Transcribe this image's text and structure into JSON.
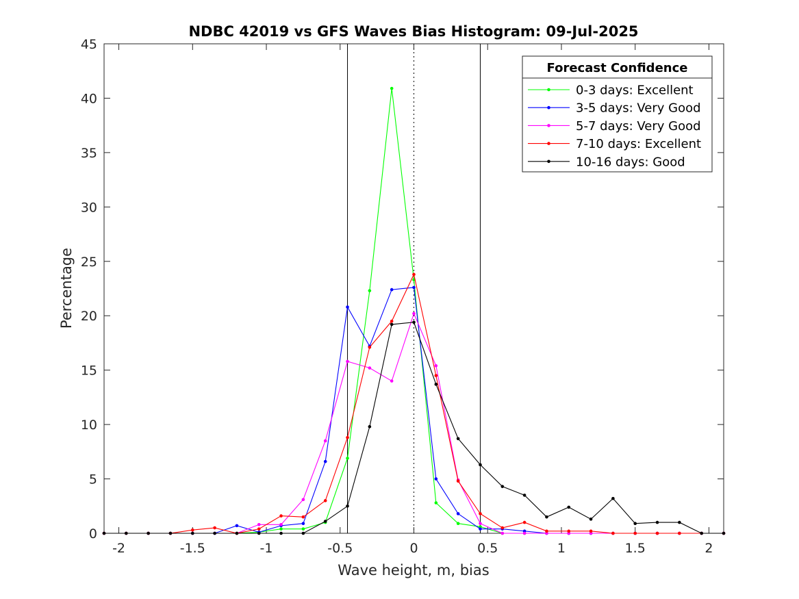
{
  "chart_data": {
    "type": "line",
    "title": "NDBC 42019 vs GFS Waves Bias Histogram: 09-Jul-2025",
    "xlabel": "Wave height, m, bias",
    "ylabel": "Percentage",
    "xlim": [
      -2.1,
      2.1
    ],
    "ylim": [
      0,
      45
    ],
    "xticks": [
      -2,
      -1.5,
      -1,
      -0.5,
      0,
      0.5,
      1,
      1.5,
      2
    ],
    "xtick_labels": [
      "-2",
      "-1.5",
      "-1",
      "-0.5",
      "0",
      "0.5",
      "1",
      "1.5",
      "2"
    ],
    "yticks": [
      0,
      5,
      10,
      15,
      20,
      25,
      30,
      35,
      40,
      45
    ],
    "ytick_labels": [
      "0",
      "5",
      "10",
      "15",
      "20",
      "25",
      "30",
      "35",
      "40",
      "45"
    ],
    "grid": false,
    "vertical_lines": [
      {
        "x": -0.45,
        "style": "solid"
      },
      {
        "x": 0,
        "style": "dotted"
      },
      {
        "x": 0.45,
        "style": "solid"
      }
    ],
    "legend": {
      "title": "Forecast Confidence",
      "placement": "top-right"
    },
    "x": [
      -2.1,
      -1.95,
      -1.8,
      -1.65,
      -1.5,
      -1.35,
      -1.2,
      -1.05,
      -0.9,
      -0.75,
      -0.6,
      -0.45,
      -0.3,
      -0.15,
      0,
      0.15,
      0.3,
      0.45,
      0.6,
      0.75,
      0.9,
      1.05,
      1.2,
      1.35,
      1.5,
      1.65,
      1.8,
      1.95,
      2.1
    ],
    "series": [
      {
        "name": "0-3 days: Excellent",
        "color": "#00ff00",
        "values": [
          0,
          0,
          0,
          0,
          0,
          0,
          0,
          0.1,
          0.4,
          0.4,
          1.0,
          6.9,
          22.3,
          40.9,
          23.3,
          2.8,
          0.9,
          0.6,
          0,
          0,
          0,
          0,
          0,
          0,
          0,
          0,
          0,
          0,
          0
        ]
      },
      {
        "name": "3-5 days: Very Good",
        "color": "#0000ff",
        "values": [
          0,
          0,
          0,
          0,
          0,
          0,
          0.7,
          0.1,
          0.7,
          0.9,
          6.6,
          20.8,
          17.2,
          22.4,
          22.6,
          5.0,
          1.8,
          0.4,
          0.4,
          0.2,
          0,
          0,
          0,
          0,
          0,
          0,
          0,
          0,
          0
        ]
      },
      {
        "name": "5-7 days: Very Good",
        "color": "#ff00ff",
        "values": [
          0,
          0,
          0,
          0,
          0,
          0,
          0,
          0.8,
          0.8,
          3.1,
          8.5,
          15.8,
          15.2,
          14.0,
          20.2,
          15.4,
          4.9,
          0.9,
          0,
          0,
          0,
          0,
          0,
          0,
          0,
          0,
          0,
          0,
          0
        ]
      },
      {
        "name": "7-10 days: Excellent",
        "color": "#ff0000",
        "values": [
          0,
          0,
          0,
          0,
          0.3,
          0.5,
          0,
          0.4,
          1.6,
          1.5,
          3.0,
          8.8,
          17.1,
          19.5,
          23.8,
          14.5,
          4.8,
          1.8,
          0.5,
          1.0,
          0.2,
          0.2,
          0.2,
          0,
          0,
          0,
          0,
          0,
          0
        ]
      },
      {
        "name": "10-16 days: Good",
        "color": "#000000",
        "values": [
          0,
          0,
          0,
          0,
          0,
          0,
          0,
          0,
          0,
          0,
          1.1,
          2.5,
          9.8,
          19.2,
          19.4,
          13.7,
          8.7,
          6.3,
          4.3,
          3.5,
          1.5,
          2.4,
          1.3,
          3.2,
          0.9,
          1.0,
          1.0,
          0,
          0
        ]
      }
    ]
  }
}
